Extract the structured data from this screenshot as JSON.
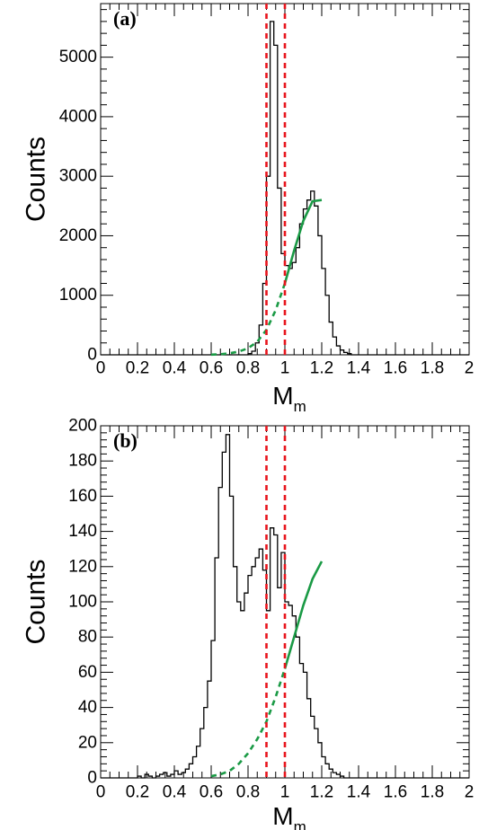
{
  "chart_data": [
    {
      "type": "histogram",
      "panel_label": "(a)",
      "xlabel": "M",
      "xlabel_subscript": "m",
      "ylabel": "Counts",
      "xlim": [
        0,
        2
      ],
      "ylim": [
        0,
        5900
      ],
      "x_ticks": [
        0,
        0.2,
        0.4,
        0.6,
        0.8,
        1,
        1.2,
        1.4,
        1.6,
        1.8,
        2
      ],
      "x_tick_labels": [
        "0",
        "0.2",
        "0.4",
        "0.6",
        "0.8",
        "1",
        "1.2",
        "1.4",
        "1.6",
        "1.8",
        "2"
      ],
      "y_ticks": [
        0,
        1000,
        2000,
        3000,
        4000,
        5000
      ],
      "y_tick_labels": [
        "0",
        "1000",
        "2000",
        "3000",
        "4000",
        "5000"
      ],
      "bin_width": 0.02,
      "bin_start": 0.8,
      "counts": [
        20,
        60,
        200,
        500,
        1200,
        3000,
        5600,
        5200,
        2800,
        1700,
        1500,
        1450,
        1550,
        1800,
        2200,
        2450,
        2600,
        2750,
        2500,
        2000,
        1450,
        1000,
        550,
        300,
        150,
        80,
        40,
        20
      ],
      "fit": {
        "solid_x_range": [
          1.0,
          1.2
        ],
        "dashed_x_range": [
          0.6,
          1.0
        ],
        "points": [
          [
            0.6,
            3
          ],
          [
            0.65,
            10
          ],
          [
            0.7,
            25
          ],
          [
            0.75,
            55
          ],
          [
            0.8,
            110
          ],
          [
            0.85,
            220
          ],
          [
            0.9,
            420
          ],
          [
            0.95,
            750
          ],
          [
            1.0,
            1200
          ],
          [
            1.05,
            1750
          ],
          [
            1.1,
            2250
          ],
          [
            1.15,
            2580
          ],
          [
            1.2,
            2600
          ]
        ]
      },
      "cut_lines": [
        0.9,
        1.0
      ],
      "colors": {
        "fit": "#1a9a45",
        "cut": "#e8141c",
        "histogram": "#000000"
      }
    },
    {
      "type": "histogram",
      "panel_label": "(b)",
      "xlabel": "M",
      "xlabel_subscript": "m",
      "ylabel": "Counts",
      "xlim": [
        0,
        2
      ],
      "ylim": [
        0,
        200
      ],
      "x_ticks": [
        0,
        0.2,
        0.4,
        0.6,
        0.8,
        1,
        1.2,
        1.4,
        1.6,
        1.8,
        2
      ],
      "x_tick_labels": [
        "0",
        "0.2",
        "0.4",
        "0.6",
        "0.8",
        "1",
        "1.2",
        "1.4",
        "1.6",
        "1.8",
        "2"
      ],
      "y_ticks": [
        0,
        20,
        40,
        60,
        80,
        100,
        120,
        140,
        160,
        180,
        200
      ],
      "y_tick_labels": [
        "0",
        "20",
        "40",
        "60",
        "80",
        "100",
        "120",
        "140",
        "160",
        "180",
        "200"
      ],
      "bin_width": 0.02,
      "bin_start": 0.2,
      "counts": [
        1,
        0,
        2,
        1,
        0,
        1,
        2,
        3,
        1,
        2,
        4,
        2,
        3,
        5,
        8,
        12,
        18,
        28,
        40,
        55,
        78,
        125,
        165,
        185,
        195,
        160,
        120,
        100,
        95,
        105,
        115,
        120,
        125,
        130,
        118,
        95,
        142,
        138,
        108,
        128,
        100,
        98,
        92,
        80,
        65,
        60,
        45,
        35,
        28,
        20,
        12,
        8,
        5,
        3,
        2,
        1
      ],
      "fit": {
        "solid_x_range": [
          1.0,
          1.2
        ],
        "dashed_x_range": [
          0.6,
          1.0
        ],
        "points": [
          [
            0.6,
            1
          ],
          [
            0.65,
            2
          ],
          [
            0.7,
            4
          ],
          [
            0.75,
            8
          ],
          [
            0.8,
            14
          ],
          [
            0.85,
            22
          ],
          [
            0.9,
            32
          ],
          [
            0.95,
            46
          ],
          [
            1.0,
            62
          ],
          [
            1.05,
            80
          ],
          [
            1.1,
            98
          ],
          [
            1.15,
            113
          ],
          [
            1.2,
            123
          ]
        ]
      },
      "cut_lines": [
        0.9,
        1.0
      ],
      "colors": {
        "fit": "#1a9a45",
        "cut": "#e8141c",
        "histogram": "#000000"
      }
    }
  ]
}
